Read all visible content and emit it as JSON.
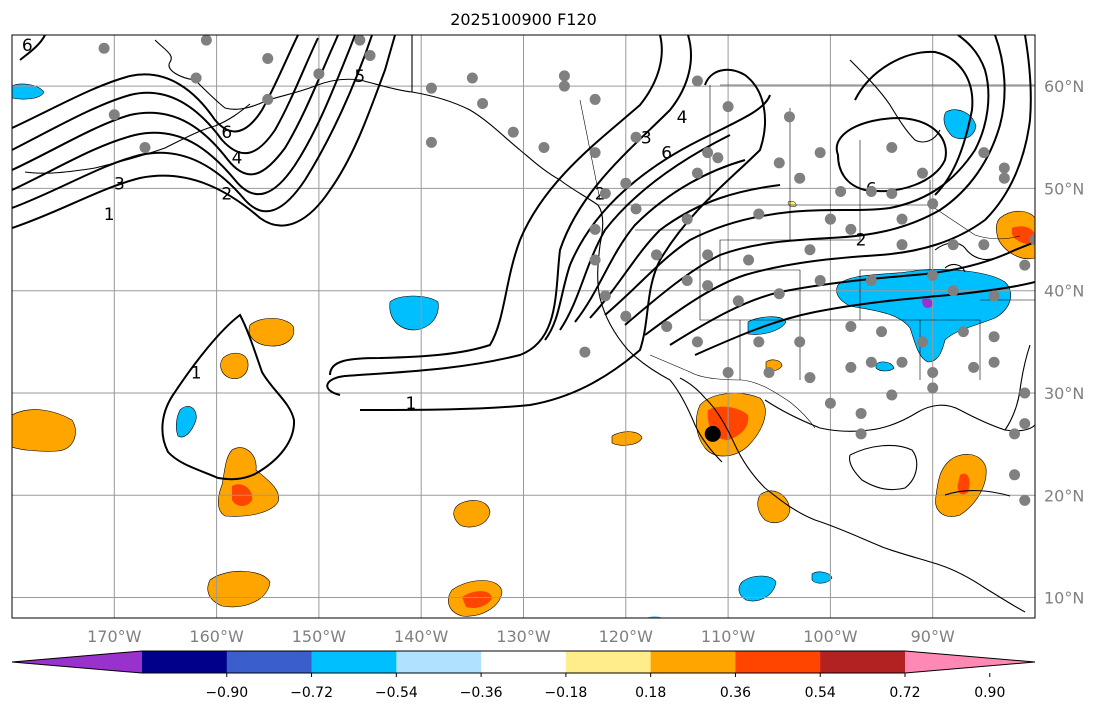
{
  "title": "2025100900 F120",
  "map": {
    "lon_range": [
      -180,
      -80
    ],
    "lat_range": [
      8,
      65
    ],
    "lon_ticks": [
      {
        "value": -170,
        "label": "170°W"
      },
      {
        "value": -160,
        "label": "160°W"
      },
      {
        "value": -150,
        "label": "150°W"
      },
      {
        "value": -140,
        "label": "140°W"
      },
      {
        "value": -130,
        "label": "130°W"
      },
      {
        "value": -120,
        "label": "120°W"
      },
      {
        "value": -110,
        "label": "110°W"
      },
      {
        "value": -100,
        "label": "100°W"
      },
      {
        "value": -90,
        "label": "90°W"
      }
    ],
    "lat_ticks": [
      {
        "value": 60,
        "label": "60°N"
      },
      {
        "value": 50,
        "label": "50°N"
      },
      {
        "value": 40,
        "label": "40°N"
      },
      {
        "value": 30,
        "label": "30°N"
      },
      {
        "value": 20,
        "label": "20°N"
      },
      {
        "value": 10,
        "label": "10°N"
      }
    ],
    "contour_labels": [
      {
        "text": "1",
        "lon": -170.5,
        "lat": 47.5
      },
      {
        "text": "3",
        "lon": -169.5,
        "lat": 50.5
      },
      {
        "text": "2",
        "lon": -159,
        "lat": 49.5
      },
      {
        "text": "4",
        "lon": -158,
        "lat": 53
      },
      {
        "text": "6",
        "lon": -159,
        "lat": 55.5
      },
      {
        "text": "5",
        "lon": -146,
        "lat": 61
      },
      {
        "text": "6",
        "lon": -178.5,
        "lat": 64
      },
      {
        "text": "3",
        "lon": -118,
        "lat": 55
      },
      {
        "text": "6",
        "lon": -116,
        "lat": 53.5
      },
      {
        "text": "4",
        "lon": -114.5,
        "lat": 57
      },
      {
        "text": "2",
        "lon": -122.5,
        "lat": 49.5
      },
      {
        "text": "6",
        "lon": -96,
        "lat": 50
      },
      {
        "text": "2",
        "lon": -97,
        "lat": 45
      },
      {
        "text": "1",
        "lon": -162,
        "lat": 32
      },
      {
        "text": "1",
        "lon": -141,
        "lat": 29
      }
    ],
    "stations": [
      [
        -171,
        63.7
      ],
      [
        -161,
        64.5
      ],
      [
        -155,
        62.7
      ],
      [
        -162,
        60.8
      ],
      [
        -155,
        58.7
      ],
      [
        -170,
        57.2
      ],
      [
        -167,
        54
      ],
      [
        -150,
        61.2
      ],
      [
        -146,
        64.5
      ],
      [
        -145,
        63
      ],
      [
        -139,
        59.8
      ],
      [
        -134,
        58.3
      ],
      [
        -135,
        60.8
      ],
      [
        -126,
        60
      ],
      [
        -123,
        58.7
      ],
      [
        -113,
        60.5
      ],
      [
        -110,
        58
      ],
      [
        -131,
        55.5
      ],
      [
        -128,
        54
      ],
      [
        -123,
        53.5
      ],
      [
        -119,
        55
      ],
      [
        -112,
        53.5
      ],
      [
        -111,
        53
      ],
      [
        -113,
        51.5
      ],
      [
        -120,
        50.5
      ],
      [
        -122,
        49.5
      ],
      [
        -119,
        48
      ],
      [
        -114,
        47
      ],
      [
        -107,
        47.5
      ],
      [
        -101,
        53.5
      ],
      [
        -99,
        49.7
      ],
      [
        -100,
        47
      ],
      [
        -96,
        49.7
      ],
      [
        -94,
        49.5
      ],
      [
        -94,
        54
      ],
      [
        -91,
        51.5
      ],
      [
        -90,
        48.5
      ],
      [
        -83,
        51
      ],
      [
        -103,
        51
      ],
      [
        -105,
        52.5
      ],
      [
        -123,
        46
      ],
      [
        -123,
        43
      ],
      [
        -117,
        43.5
      ],
      [
        -112,
        43.5
      ],
      [
        -108,
        43
      ],
      [
        -102,
        44
      ],
      [
        -100,
        47
      ],
      [
        -98,
        46
      ],
      [
        -93,
        44.5
      ],
      [
        -88,
        44.5
      ],
      [
        -85,
        44.5
      ],
      [
        -81,
        42.5
      ],
      [
        -122,
        39.5
      ],
      [
        -114,
        41
      ],
      [
        -112,
        40.5
      ],
      [
        -109,
        39
      ],
      [
        -105,
        39.7
      ],
      [
        -101,
        41
      ],
      [
        -96,
        41
      ],
      [
        -90,
        41.5
      ],
      [
        -88,
        40
      ],
      [
        -84,
        39.5
      ],
      [
        -120,
        37.5
      ],
      [
        -116,
        36.5
      ],
      [
        -113,
        35
      ],
      [
        -107,
        35
      ],
      [
        -103,
        35
      ],
      [
        -98,
        36.5
      ],
      [
        -95,
        36
      ],
      [
        -91,
        35
      ],
      [
        -87,
        36
      ],
      [
        -84,
        35.5
      ],
      [
        -124,
        34
      ],
      [
        -110,
        32
      ],
      [
        -106,
        32
      ],
      [
        -102,
        31.5
      ],
      [
        -98,
        32.5
      ],
      [
        -96,
        33
      ],
      [
        -93,
        33
      ],
      [
        -90,
        32
      ],
      [
        -86,
        32.5
      ],
      [
        -84,
        33
      ],
      [
        -81,
        30
      ],
      [
        -90,
        30.5
      ],
      [
        -94,
        29.8
      ],
      [
        -97,
        28
      ],
      [
        -97,
        26
      ],
      [
        -100,
        29
      ],
      [
        -82,
        26
      ],
      [
        -81,
        27
      ],
      [
        -82,
        22
      ],
      [
        -81,
        19.5
      ],
      [
        -83,
        52
      ],
      [
        -85,
        53.5
      ],
      [
        -80,
        45
      ],
      [
        -93,
        47
      ],
      [
        -104,
        57
      ],
      [
        -139,
        54.5
      ],
      [
        -126,
        61
      ]
    ],
    "marker": {
      "lon": -111.5,
      "lat": 26,
      "name": "point"
    }
  },
  "colorbar": {
    "colors": [
      "#9932CC",
      "#00008B",
      "#3A5FCD",
      "#00BFFF",
      "#B0E2FF",
      "#FFFFFF",
      "#FFEC8B",
      "#FFA500",
      "#FF4500",
      "#B22222",
      "#FF88B4"
    ],
    "labels": [
      "−0.90",
      "−0.72",
      "−0.54",
      "−0.36",
      "−0.18",
      "0.18",
      "0.36",
      "0.54",
      "0.72",
      "0.90"
    ]
  }
}
